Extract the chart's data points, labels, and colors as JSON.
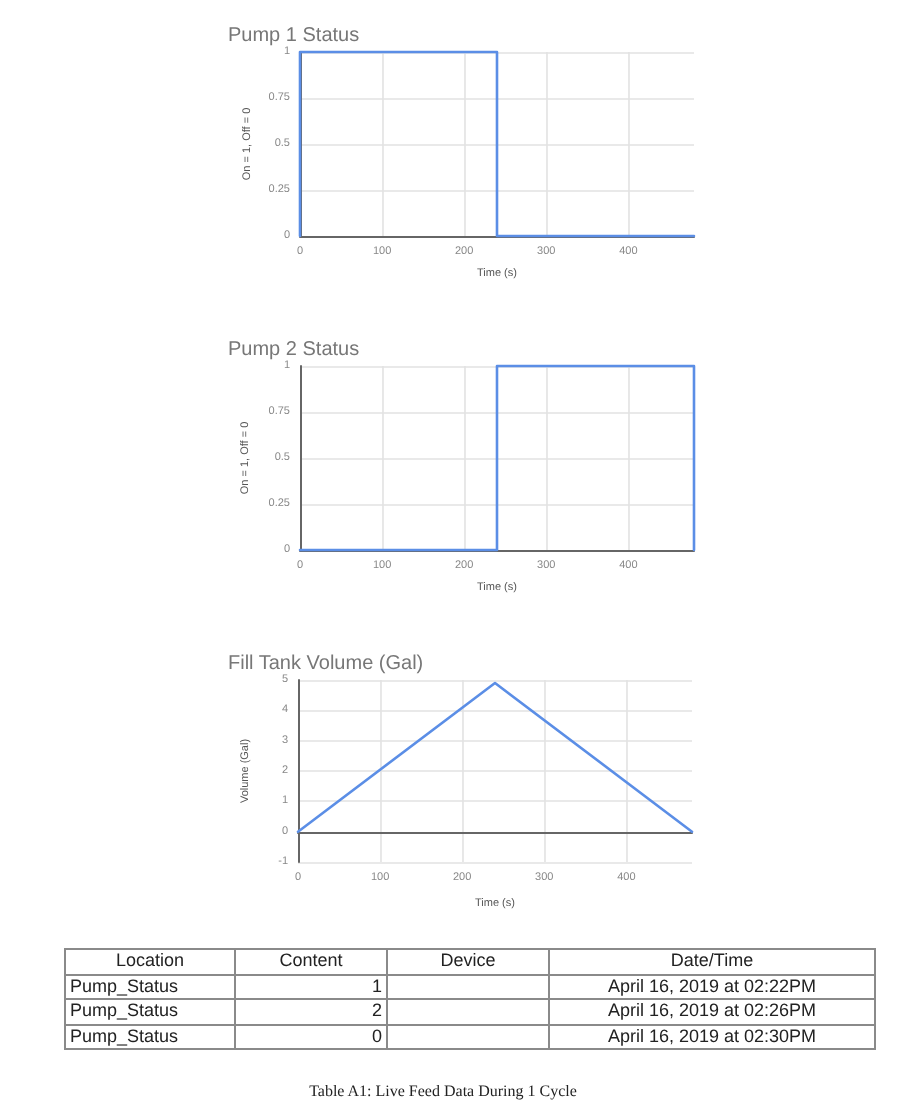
{
  "chart_data": [
    {
      "type": "line",
      "title": "Pump 1 Status",
      "xlabel": "Time (s)",
      "ylabel": "On = 1, Off = 0",
      "x": [
        0,
        0,
        240,
        240,
        480
      ],
      "values": [
        0,
        1,
        1,
        0,
        0
      ],
      "color": "#5b8ee6",
      "xlim": [
        0,
        480
      ],
      "xticks": [
        0,
        100,
        200,
        300,
        400
      ],
      "ylim": [
        0,
        1
      ],
      "yticks": [
        0,
        0.25,
        0.5,
        0.75,
        1
      ],
      "grid": true
    },
    {
      "type": "line",
      "title": "Pump 2 Status",
      "xlabel": "Time (s)",
      "ylabel": "On = 1, Off = 0",
      "x": [
        0,
        240,
        240,
        480,
        480
      ],
      "values": [
        0,
        0,
        1,
        1,
        0
      ],
      "color": "#5b8ee6",
      "xlim": [
        0,
        480
      ],
      "xticks": [
        0,
        100,
        200,
        300,
        400
      ],
      "ylim": [
        0,
        1
      ],
      "yticks": [
        0,
        0.25,
        0.5,
        0.75,
        1
      ],
      "grid": true
    },
    {
      "type": "line",
      "title": "Fill Tank Volume (Gal)",
      "xlabel": "Time (s)",
      "ylabel": "Volume (Gal)",
      "x": [
        0,
        240,
        480
      ],
      "values": [
        0,
        4.9,
        0
      ],
      "color": "#5b8ee6",
      "xlim": [
        0,
        480
      ],
      "xticks": [
        0,
        100,
        200,
        300,
        400
      ],
      "ylim": [
        -1,
        5
      ],
      "yticks": [
        -1,
        0,
        1,
        2,
        3,
        4,
        5
      ],
      "grid": true
    },
    {
      "type": "other",
      "categories": [
        "Location",
        "Content",
        "Device",
        "Date/Time"
      ],
      "cell_labels": [
        [
          "Pump_Status",
          "1",
          null,
          "April 16, 2019 at 02:22PM"
        ],
        [
          "Pump_Status",
          "2",
          null,
          "April 16, 2019 at 02:26PM"
        ],
        [
          "Pump_Status",
          "0",
          null,
          "April 16, 2019 at 02:30PM"
        ]
      ],
      "annotations": [
        "Table A1: Live Feed Data During 1 Cycle"
      ]
    }
  ]
}
